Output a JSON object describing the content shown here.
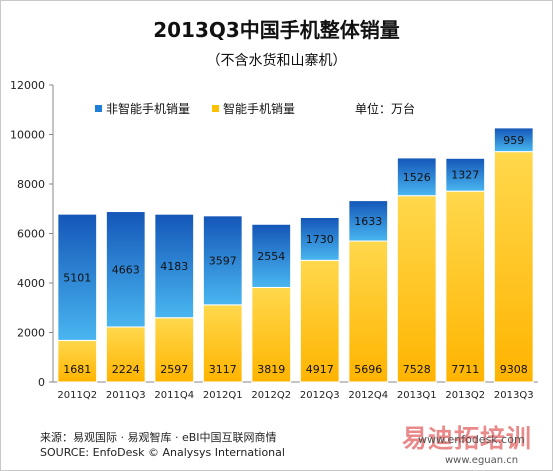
{
  "chart_data": {
    "type": "bar",
    "stacked": true,
    "title": "2013Q3中国手机整体销量",
    "subtitle": "（不含水货和山寨机）",
    "unit_label": "单位：万台",
    "categories": [
      "2011Q2",
      "2011Q3",
      "2011Q4",
      "2012Q1",
      "2012Q2",
      "2012Q3",
      "2012Q4",
      "2013Q1",
      "2013Q2",
      "2013Q3"
    ],
    "series": [
      {
        "name": "智能手机销量",
        "values": [
          1681,
          2224,
          2597,
          3117,
          3819,
          4917,
          5696,
          7528,
          7711,
          9308
        ],
        "color": "#ffc000"
      },
      {
        "name": "非智能手机销量",
        "values": [
          5101,
          4663,
          4183,
          3597,
          2554,
          1730,
          1633,
          1526,
          1327,
          959
        ],
        "color": "#1f7ed6"
      }
    ],
    "legend_order": [
      "非智能手机销量",
      "智能手机销量"
    ],
    "ylim": [
      0,
      12000
    ],
    "yticks": [
      0,
      2000,
      4000,
      6000,
      8000,
      10000,
      12000
    ],
    "ytick_labels": [
      "0",
      "2000",
      "4000",
      "6000",
      "8000",
      "10000",
      "12000"
    ],
    "grid": false,
    "legend_position": "top-left"
  },
  "footer": {
    "source_cn": "来源：易观国际 · 易观智库 · eBI中国互联网商情",
    "source_en": "SOURCE:  EnfoDesk © Analysys International"
  },
  "watermark": {
    "text": "易迪拓培训",
    "url1": "www.enfodesk.com",
    "url2": "www.eguan.cn"
  }
}
